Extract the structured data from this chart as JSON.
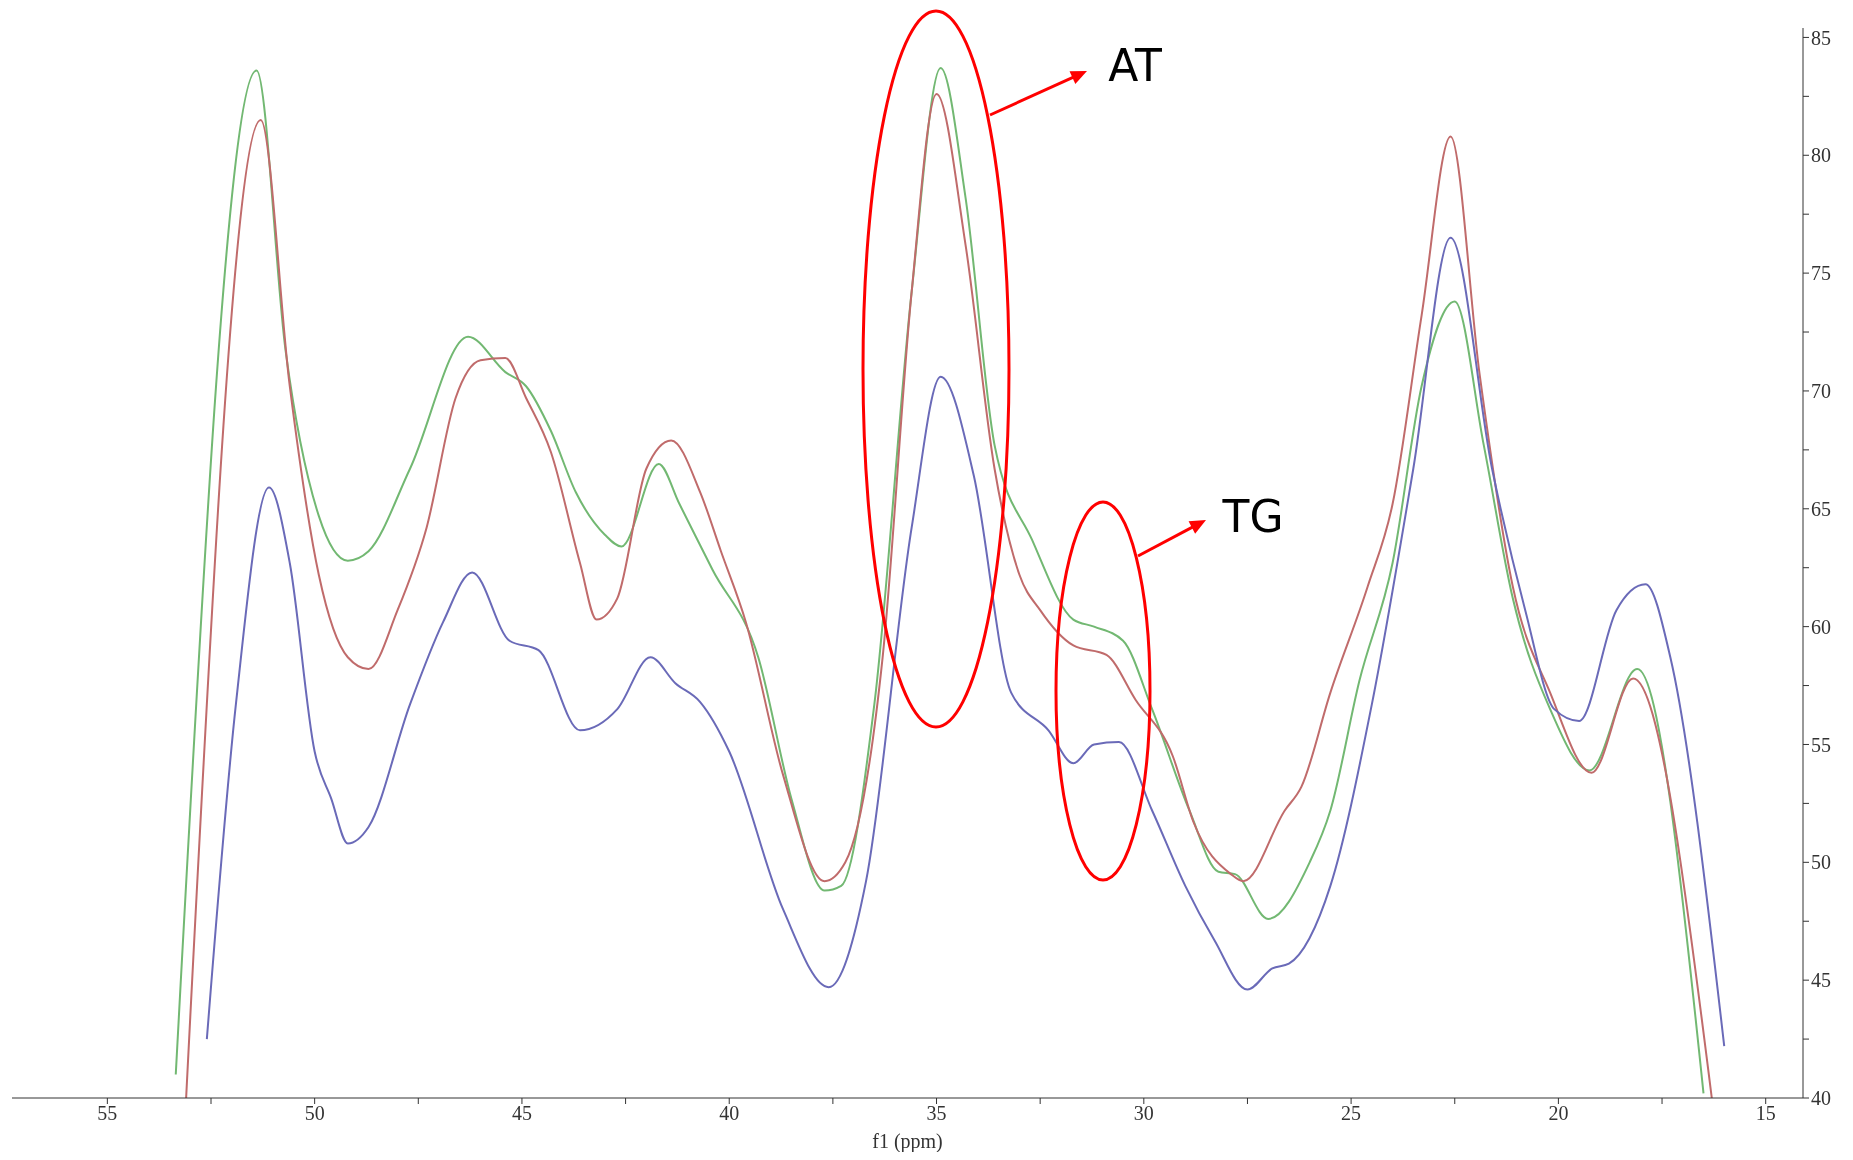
{
  "chart_data": {
    "type": "line",
    "xlabel": "f1 (ppm)",
    "xlim": [
      57.3,
      14.1
    ],
    "xticks": [
      55,
      {
        "value": 52.5,
        "label": null
      },
      50,
      {
        "value": 47.5,
        "label": null
      },
      45,
      {
        "value": 42.5,
        "label": null
      },
      40,
      {
        "value": 37.5,
        "label": null
      },
      35,
      {
        "value": 32.5,
        "label": null
      },
      30,
      {
        "value": 27.5,
        "label": null
      },
      25,
      {
        "value": 22.5,
        "label": null
      },
      20,
      {
        "value": 17.5,
        "label": null
      },
      15
    ],
    "ylim": [
      40,
      85.4
    ],
    "yticks": [
      40,
      {
        "value": 42.5,
        "label": null
      },
      45,
      {
        "value": 47.5,
        "label": null
      },
      50,
      {
        "value": 52.5,
        "label": null
      },
      55,
      {
        "value": 57.5,
        "label": null
      },
      60,
      {
        "value": 62.5,
        "label": null
      },
      65,
      {
        "value": 67.5,
        "label": null
      },
      70,
      {
        "value": 72.5,
        "label": null
      },
      75,
      {
        "value": 77.5,
        "label": null
      },
      80,
      {
        "value": 82.5,
        "label": null
      },
      85
    ],
    "series": [
      {
        "color": "#72b872",
        "x": [
          53.35,
          51.4,
          50.7,
          49.9,
          49.2,
          48.7,
          47.7,
          46.3,
          45.4,
          44.9,
          44.3,
          43.7,
          43.0,
          42.6,
          41.7,
          41.2,
          40.4,
          39.3,
          38.5,
          37.7,
          37.3,
          36.5,
          35.6,
          34.9,
          34.3,
          33.6,
          32.7,
          31.7,
          31.2,
          30.5,
          29.8,
          28.9,
          28.2,
          27.8,
          27.0,
          26.0,
          25.5,
          24.8,
          24.0,
          23.3,
          22.5,
          21.8,
          21.1,
          20.2,
          19.25,
          18.1,
          16.5
        ],
        "values": [
          41,
          83.6,
          71.7,
          64.7,
          62.8,
          63.2,
          66.7,
          72.3,
          70.8,
          70.2,
          68.3,
          65.7,
          63.9,
          63.4,
          66.9,
          65.2,
          62.4,
          58.7,
          52.7,
          48.8,
          49.0,
          56.7,
          74.2,
          83.7,
          78.2,
          67.7,
          63.7,
          60.3,
          60.0,
          59.4,
          56.5,
          52.2,
          49.6,
          49.5,
          47.6,
          50.0,
          52.2,
          57.7,
          62.7,
          70.2,
          73.8,
          67.7,
          61.2,
          56.5,
          53.9,
          58.2,
          40.2
        ]
      },
      {
        "color": "#c06b6b",
        "x": [
          53.1,
          51.3,
          50.6,
          49.9,
          49.2,
          48.7,
          48.0,
          47.3,
          46.6,
          46.0,
          45.4,
          44.9,
          44.3,
          43.6,
          43.2,
          42.7,
          42.0,
          41.4,
          40.7,
          40.2,
          39.6,
          38.7,
          37.7,
          37.2,
          36.3,
          35.6,
          35.0,
          34.3,
          33.6,
          33.0,
          32.5,
          31.7,
          30.9,
          30.2,
          29.3,
          28.8,
          27.9,
          27.6,
          26.6,
          26.2,
          25.5,
          24.6,
          24.0,
          23.3,
          22.6,
          21.9,
          21.1,
          20.2,
          19.2,
          18.2,
          16.3
        ],
        "values": [
          40,
          81.5,
          70.2,
          62.2,
          58.7,
          58.2,
          60.7,
          64.2,
          69.7,
          71.3,
          71.4,
          69.7,
          67.4,
          62.7,
          60.3,
          61.2,
          66.7,
          67.9,
          65.7,
          63.2,
          60.2,
          53.7,
          49.2,
          50.0,
          58.7,
          74.2,
          82.6,
          76.2,
          66.7,
          62.2,
          60.7,
          59.2,
          58.8,
          56.9,
          54.5,
          51.7,
          49.5,
          49.2,
          52.2,
          53.2,
          57.2,
          61.7,
          65.2,
          73.2,
          80.8,
          70.7,
          61.7,
          57.2,
          53.8,
          57.8,
          40
        ]
      },
      {
        "color": "#6a6ab8",
        "x": [
          52.6,
          51.9,
          51.1,
          50.6,
          50.0,
          49.6,
          49.2,
          48.7,
          47.7,
          46.9,
          46.2,
          45.3,
          44.6,
          43.6,
          42.7,
          41.9,
          41.3,
          40.7,
          40.0,
          38.7,
          37.6,
          36.7,
          35.6,
          34.9,
          34.1,
          33.2,
          32.3,
          31.7,
          31.2,
          30.6,
          29.8,
          29.0,
          28.3,
          27.5,
          26.9,
          26.5,
          25.5,
          24.5,
          23.5,
          22.6,
          21.6,
          20.8,
          20.1,
          19.5,
          18.6,
          17.9,
          17.3,
          16.0
        ],
        "values": [
          42.5,
          56.7,
          65.9,
          62.7,
          54.7,
          52.7,
          50.8,
          51.5,
          56.7,
          60.2,
          62.3,
          59.4,
          59.0,
          55.6,
          56.5,
          58.7,
          57.6,
          56.8,
          54.7,
          48.0,
          44.7,
          49.2,
          64.2,
          70.6,
          66.4,
          57.2,
          55.6,
          54.2,
          55.0,
          55.1,
          52.2,
          49.0,
          46.7,
          44.6,
          45.5,
          45.7,
          49.0,
          56.7,
          66.7,
          76.5,
          66.7,
          60.7,
          56.5,
          56.0,
          60.7,
          61.8,
          58.7,
          42.2
        ]
      }
    ],
    "annotations": [
      "AT",
      "TG"
    ]
  }
}
